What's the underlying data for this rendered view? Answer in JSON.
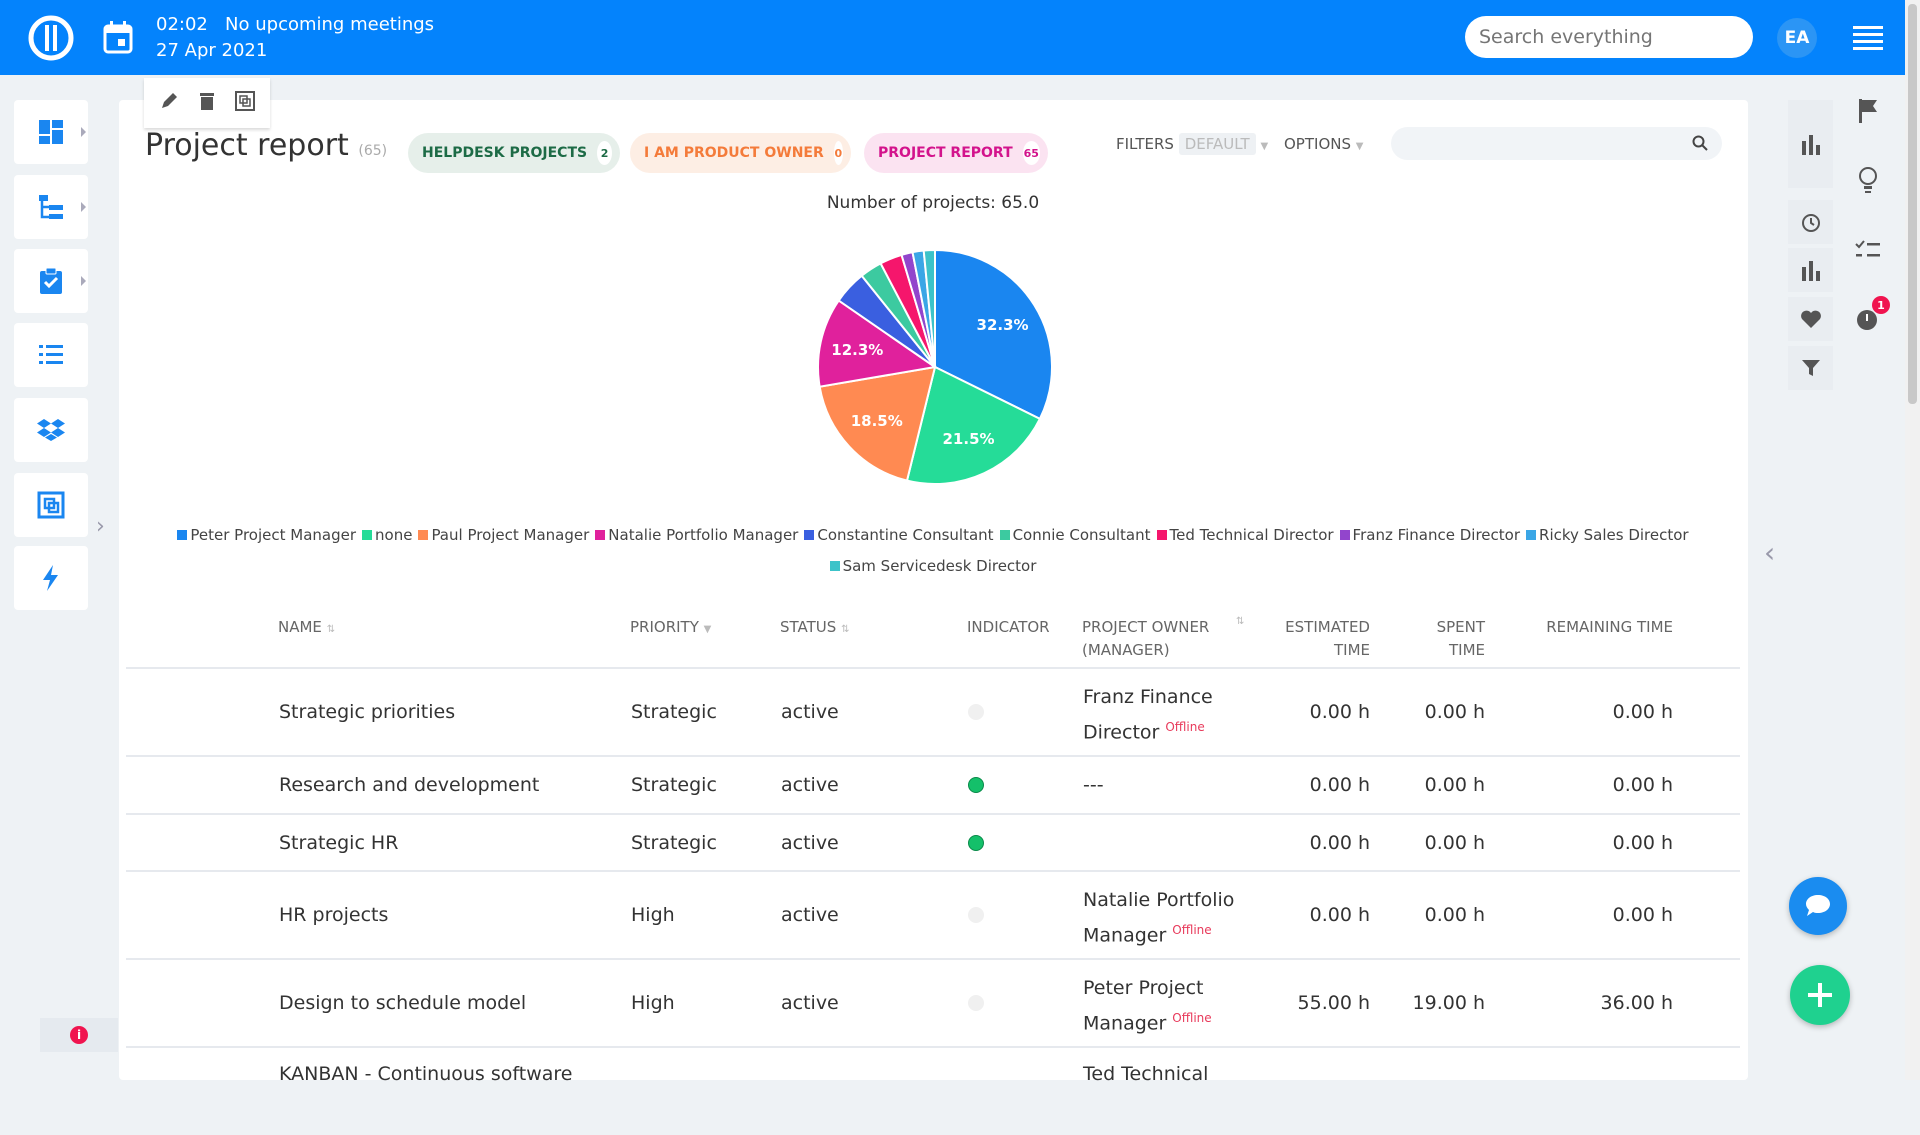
{
  "topbar": {
    "time": "02:02",
    "meetings": "No upcoming meetings",
    "date": "27 Apr 2021",
    "search_placeholder": "Search everything",
    "avatar": "EA"
  },
  "page": {
    "title": "Project report",
    "count": "(65)"
  },
  "chips": [
    {
      "label": "HELPDESK PROJECTS",
      "count": "2",
      "color": "#1d6b46",
      "bg": "#e6efea"
    },
    {
      "label": "I AM PRODUCT OWNER",
      "count": "0",
      "color": "#f47b3a",
      "bg": "#fdeee4"
    },
    {
      "label": "PROJECT REPORT",
      "count": "65",
      "color": "#d3138c",
      "bg": "#fbe3f1"
    }
  ],
  "filters": {
    "label": "FILTERS",
    "value": "DEFAULT",
    "options": "OPTIONS"
  },
  "chart_data": {
    "type": "pie",
    "title": "Number of projects: 65.0",
    "legend": "bottom",
    "categories": [
      "Peter Project Manager",
      "none",
      "Paul Project Manager",
      "Natalie Portfolio Manager",
      "Constantine Consultant",
      "Connie Consultant",
      "Ted Technical Director",
      "Franz Finance Director",
      "Ricky Sales Director",
      "Sam Servicedesk Director"
    ],
    "values": [
      21,
      14,
      12,
      8,
      3,
      2,
      2,
      1,
      1,
      1
    ],
    "labels": [
      "32.3%",
      "21.5%",
      "18.5%",
      "12.3%",
      "",
      "",
      "",
      "",
      "",
      ""
    ],
    "colors": [
      "#1a86f0",
      "#25dc98",
      "#ff8a52",
      "#e0219c",
      "#3a5fe0",
      "#3ccaa0",
      "#f5166c",
      "#9245cc",
      "#3aa6e6",
      "#3cc3c9"
    ]
  },
  "table": {
    "headers": [
      "NAME",
      "PRIORITY",
      "STATUS",
      "INDICATOR",
      "PROJECT OWNER",
      "(MANAGER)",
      "ESTIMATED",
      "TIME",
      "SPENT",
      "TIME",
      "REMAINING TIME"
    ],
    "offline": "Offline",
    "rows": [
      {
        "name": "Strategic priorities",
        "priority": "Strategic",
        "status": "active",
        "indicator": "grey",
        "owner1": "Franz Finance",
        "owner2": "Director",
        "offline": true,
        "est": "0.00 h",
        "spent": "0.00 h",
        "rem": "0.00 h"
      },
      {
        "name": "Research and development",
        "priority": "Strategic",
        "status": "active",
        "indicator": "green",
        "owner1": "---",
        "owner2": "",
        "offline": false,
        "est": "0.00 h",
        "spent": "0.00 h",
        "rem": "0.00 h"
      },
      {
        "name": "Strategic HR",
        "priority": "Strategic",
        "status": "active",
        "indicator": "green",
        "owner1": "",
        "owner2": "",
        "offline": false,
        "est": "0.00 h",
        "spent": "0.00 h",
        "rem": "0.00 h"
      },
      {
        "name": "HR projects",
        "priority": "High",
        "status": "active",
        "indicator": "grey",
        "owner1": "Natalie Portfolio",
        "owner2": "Manager",
        "offline": true,
        "est": "0.00 h",
        "spent": "0.00 h",
        "rem": "0.00 h"
      },
      {
        "name": "Design to schedule model",
        "priority": "High",
        "status": "active",
        "indicator": "grey",
        "owner1": "Peter Project",
        "owner2": "Manager",
        "offline": true,
        "est": "55.00 h",
        "spent": "19.00 h",
        "rem": "36.00 h"
      },
      {
        "name": "KANBAN - Continuous software",
        "priority": "",
        "status": "",
        "indicator": "none",
        "owner1": "Ted Technical",
        "owner2": "",
        "offline": false,
        "est": "",
        "spent": "",
        "rem": ""
      }
    ]
  },
  "badges": {
    "timer": "1"
  }
}
